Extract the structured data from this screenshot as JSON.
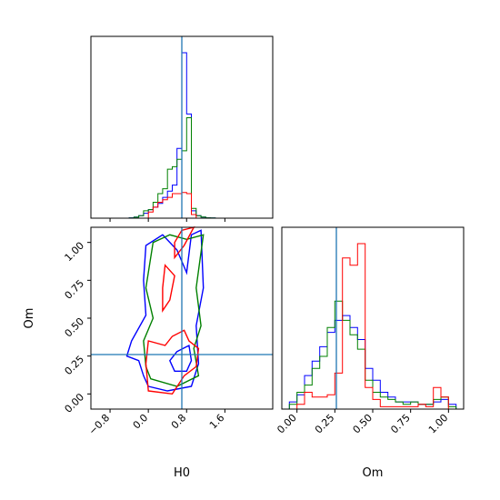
{
  "chart_data": {
    "type": "corner",
    "parameters": [
      "H0",
      "Om"
    ],
    "truth": {
      "H0": 0.7,
      "Om": 0.26
    },
    "truth_color": "#1f77b4",
    "series_colors": [
      "#0000ff",
      "#008000",
      "#ff0000"
    ],
    "xlabel_h0": "H0",
    "xlabel_om": "Om",
    "ylabel_om": "Om",
    "h0_range": [
      -1.2,
      2.6
    ],
    "om_range": [
      -0.1,
      1.1
    ],
    "h0_ticks": [
      "−0.8",
      "0.0",
      "0.8",
      "1.6"
    ],
    "h0_tick_values": [
      -0.8,
      0.0,
      0.8,
      1.6
    ],
    "om_ticks": [
      "0.00",
      "0.25",
      "0.50",
      "0.75",
      "1.00"
    ],
    "om_tick_values": [
      0.0,
      0.25,
      0.5,
      0.75,
      1.0
    ],
    "hist_h0": [
      {
        "color": "#0000ff",
        "edges": [
          -0.4,
          -0.3,
          -0.2,
          -0.1,
          0.0,
          0.1,
          0.2,
          0.3,
          0.4,
          0.5,
          0.6,
          0.7,
          0.8,
          0.9,
          1.0,
          1.1,
          1.2,
          1.3,
          1.4
        ],
        "values": [
          0.3,
          1.0,
          2.0,
          4,
          7,
          9,
          12,
          17,
          22,
          27,
          57,
          135,
          85,
          6,
          2.0,
          1,
          0.3,
          0.2
        ]
      },
      {
        "color": "#008000",
        "edges": [
          -0.4,
          -0.3,
          -0.2,
          -0.1,
          0.0,
          0.1,
          0.2,
          0.3,
          0.4,
          0.5,
          0.6,
          0.7,
          0.8,
          0.9,
          1.0,
          1.1,
          1.2,
          1.3,
          1.4
        ],
        "values": [
          0.2,
          0.8,
          2.0,
          6,
          7,
          13,
          20,
          24,
          40,
          42,
          48,
          55,
          82,
          8,
          2.0,
          1,
          0.3,
          0.2
        ]
      },
      {
        "color": "#ff0000",
        "edges": [
          0.0,
          0.1,
          0.2,
          0.3,
          0.4,
          0.5,
          0.6,
          0.7,
          0.8,
          0.9,
          1.0
        ],
        "values": [
          5,
          9,
          13,
          15,
          17,
          20,
          20,
          21,
          20,
          3
        ]
      }
    ],
    "hist_om": [
      {
        "color": "#0000ff",
        "edges": [
          -0.05,
          0.0,
          0.05,
          0.1,
          0.15,
          0.2,
          0.25,
          0.3,
          0.35,
          0.4,
          0.45,
          0.5,
          0.55,
          0.6,
          0.65,
          0.7,
          0.75,
          0.8,
          0.85,
          0.9,
          0.95,
          1.0,
          1.05
        ],
        "values": [
          3,
          6,
          14,
          20,
          26,
          32,
          37,
          39,
          34,
          29,
          17,
          12,
          7,
          5,
          3,
          3,
          3,
          2,
          2,
          3,
          4,
          2
        ]
      },
      {
        "color": "#008000",
        "edges": [
          -0.05,
          0.0,
          0.05,
          0.1,
          0.15,
          0.2,
          0.25,
          0.3,
          0.35,
          0.4,
          0.45,
          0.5,
          0.55,
          0.6,
          0.65,
          0.7,
          0.75,
          0.8,
          0.85,
          0.9,
          0.95,
          1.0,
          1.05
        ],
        "values": [
          2,
          7,
          10,
          17,
          22,
          34,
          45,
          37,
          31,
          25,
          12,
          7,
          5,
          4,
          3,
          2,
          3,
          2,
          2,
          4,
          5,
          1
        ]
      },
      {
        "color": "#ff0000",
        "edges": [
          0.0,
          0.05,
          0.1,
          0.15,
          0.2,
          0.25,
          0.3,
          0.35,
          0.4,
          0.45,
          0.5,
          0.55,
          0.6,
          0.65,
          0.7,
          0.75,
          0.8,
          0.85,
          0.9,
          0.95,
          1.0
        ],
        "values": [
          2,
          7,
          5,
          5,
          6,
          15,
          63,
          60,
          69,
          9,
          4,
          1,
          1,
          1,
          1,
          1,
          2,
          1,
          9,
          5
        ]
      }
    ],
    "contours": [
      {
        "color": "#0000ff",
        "points": [
          [
            0.0,
            0.05
          ],
          [
            0.4,
            0.02
          ],
          [
            0.9,
            0.05
          ],
          [
            1.05,
            0.2
          ],
          [
            1.0,
            0.45
          ],
          [
            1.15,
            0.7
          ],
          [
            1.1,
            1.08
          ],
          [
            0.9,
            1.05
          ],
          [
            0.8,
            0.8
          ],
          [
            0.6,
            0.95
          ],
          [
            0.3,
            1.05
          ],
          [
            -0.05,
            0.98
          ],
          [
            -0.1,
            0.75
          ],
          [
            -0.05,
            0.52
          ],
          [
            -0.35,
            0.35
          ],
          [
            -0.45,
            0.25
          ],
          [
            -0.2,
            0.22
          ],
          [
            -0.1,
            0.12
          ]
        ]
      },
      {
        "color": "#0000ff",
        "points": [
          [
            0.6,
            0.28
          ],
          [
            0.85,
            0.32
          ],
          [
            0.9,
            0.22
          ],
          [
            0.8,
            0.15
          ],
          [
            0.55,
            0.15
          ],
          [
            0.45,
            0.22
          ]
        ]
      },
      {
        "color": "#008000",
        "points": [
          [
            0.05,
            0.1
          ],
          [
            0.6,
            0.05
          ],
          [
            1.05,
            0.12
          ],
          [
            0.95,
            0.3
          ],
          [
            1.1,
            0.45
          ],
          [
            1.0,
            0.7
          ],
          [
            1.15,
            1.05
          ],
          [
            0.8,
            1.02
          ],
          [
            0.45,
            1.05
          ],
          [
            0.1,
            1.0
          ],
          [
            -0.05,
            0.7
          ],
          [
            0.1,
            0.5
          ],
          [
            -0.1,
            0.35
          ],
          [
            -0.05,
            0.18
          ]
        ]
      },
      {
        "color": "#ff0000",
        "points": [
          [
            0.0,
            0.02
          ],
          [
            0.5,
            0.0
          ],
          [
            0.75,
            0.12
          ],
          [
            1.0,
            0.18
          ],
          [
            1.05,
            0.3
          ],
          [
            0.85,
            0.35
          ],
          [
            0.75,
            0.42
          ],
          [
            0.5,
            0.38
          ],
          [
            0.35,
            0.32
          ],
          [
            0.0,
            0.35
          ],
          [
            -0.05,
            0.2
          ]
        ]
      },
      {
        "color": "#ff0000",
        "points": [
          [
            0.3,
            0.55
          ],
          [
            0.45,
            0.62
          ],
          [
            0.55,
            0.78
          ],
          [
            0.35,
            0.85
          ],
          [
            0.3,
            0.7
          ]
        ]
      },
      {
        "color": "#ff0000",
        "points": [
          [
            0.55,
            0.9
          ],
          [
            0.75,
            0.98
          ],
          [
            0.95,
            1.1
          ],
          [
            0.7,
            1.08
          ],
          [
            0.55,
            1.0
          ]
        ]
      }
    ]
  }
}
